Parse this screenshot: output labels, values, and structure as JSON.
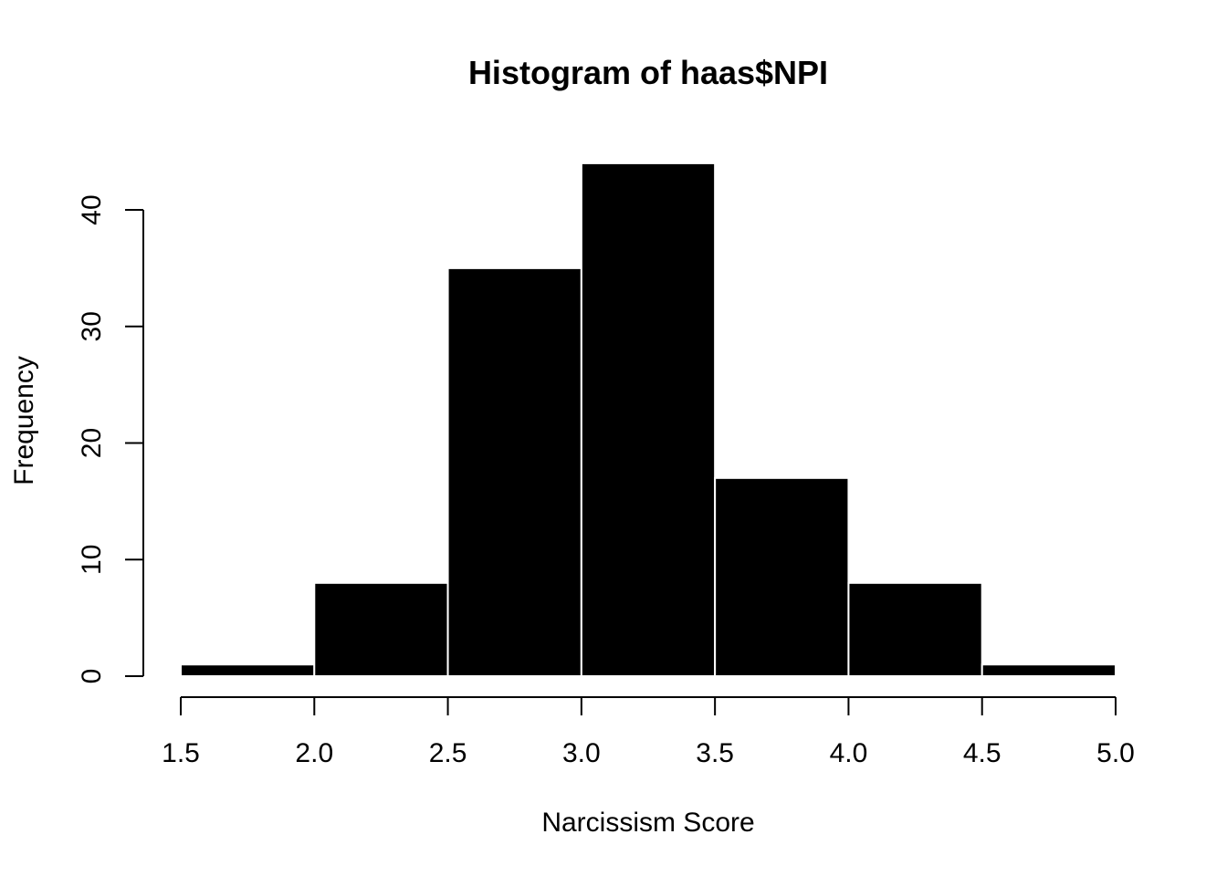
{
  "chart_data": {
    "type": "histogram",
    "title": "Histogram of haas$NPI",
    "xlabel": "Narcissism Score",
    "ylabel": "Frequency",
    "bins": [
      {
        "from": 1.5,
        "to": 2.0,
        "count": 1
      },
      {
        "from": 2.0,
        "to": 2.5,
        "count": 8
      },
      {
        "from": 2.5,
        "to": 3.0,
        "count": 35
      },
      {
        "from": 3.0,
        "to": 3.5,
        "count": 44
      },
      {
        "from": 3.5,
        "to": 4.0,
        "count": 17
      },
      {
        "from": 4.0,
        "to": 4.5,
        "count": 8
      },
      {
        "from": 4.5,
        "to": 5.0,
        "count": 1
      }
    ],
    "xlim": [
      1.5,
      5.0
    ],
    "ylim": [
      0,
      44
    ],
    "x_ticks": [
      "1.5",
      "2.0",
      "2.5",
      "3.0",
      "3.5",
      "4.0",
      "4.5",
      "5.0"
    ],
    "y_ticks": [
      "0",
      "10",
      "20",
      "30",
      "40"
    ],
    "grid": false,
    "bar_fill": "#000000",
    "bar_border": "#ffffff"
  }
}
